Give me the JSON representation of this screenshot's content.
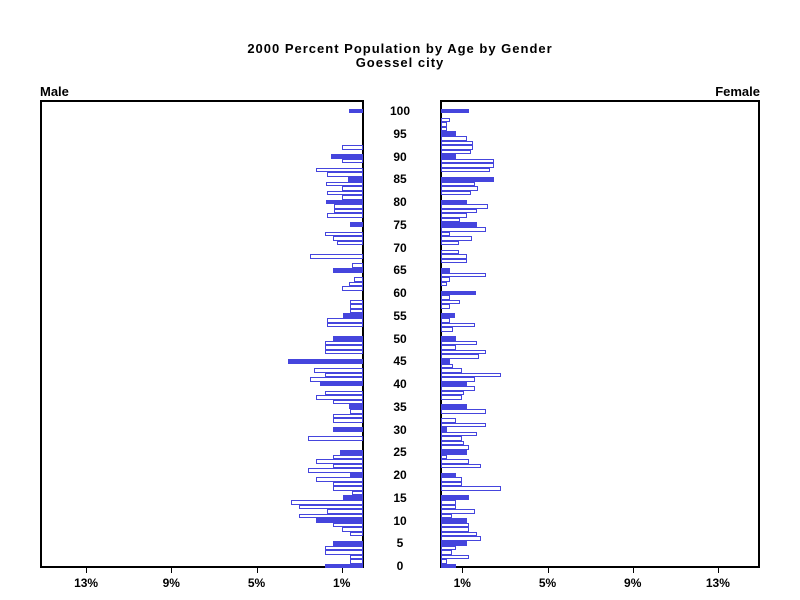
{
  "title": {
    "line1": "2000 Percent Population by Age by Gender",
    "line2": "Goessel city"
  },
  "panels": {
    "male_label": "Male",
    "female_label": "Female"
  },
  "axis": {
    "age_ticks": [
      0,
      5,
      10,
      15,
      20,
      25,
      30,
      35,
      40,
      45,
      50,
      55,
      60,
      65,
      70,
      75,
      80,
      85,
      90,
      95,
      100
    ],
    "pct_tick_values": [
      1,
      5,
      9,
      13
    ],
    "pct_tick_labels": [
      "1%",
      "5%",
      "9%",
      "13%"
    ]
  },
  "colors": {
    "bar_blue": "#4545dd",
    "bar_white_fill": "#ffffff",
    "frame_black": "#000000",
    "background": "#ffffff"
  },
  "chart_data": {
    "type": "bar",
    "subtype": "population-pyramid",
    "title": "2000 Percent Population by Age by Gender",
    "subtitle": "Goessel city",
    "legend": "none",
    "left_panel_label": "Male",
    "right_panel_label": "Female",
    "units": "percent of population",
    "x_axis": {
      "tick_values": [
        1,
        5,
        9,
        13
      ],
      "tick_labels": [
        "1%",
        "5%",
        "9%",
        "13%"
      ],
      "range_pct": [
        0,
        15
      ],
      "mirrored": true
    },
    "y_axis": {
      "age_range": [
        0,
        100
      ],
      "age_label_step": 5
    },
    "style_note": "one horizontal bar per single year of age 0-100; ages that are multiples of 5 are solid blue, other ages are white with blue outline",
    "values_indexed_by_age_0_to_100": true,
    "series": [
      {
        "name": "Male",
        "values": [
          1.8,
          0.6,
          0.6,
          1.8,
          1.8,
          1.4,
          0,
          0.6,
          1.0,
          1.4,
          2.2,
          3.0,
          1.7,
          3.0,
          3.4,
          0.95,
          0.5,
          1.4,
          1.4,
          2.2,
          0.6,
          2.6,
          1.4,
          2.2,
          1.4,
          1.1,
          0,
          0,
          2.6,
          0,
          1.4,
          0,
          1.4,
          1.4,
          0.6,
          0.65,
          1.4,
          2.2,
          1.8,
          0,
          2.0,
          2.5,
          1.8,
          2.3,
          0,
          3.5,
          0,
          1.8,
          1.8,
          1.8,
          1.4,
          0,
          0,
          1.7,
          1.7,
          0.95,
          0.6,
          0.6,
          0.6,
          0,
          0,
          1.0,
          0.65,
          0.4,
          0,
          1.4,
          0.5,
          0,
          2.5,
          0,
          0,
          1.2,
          1.4,
          1.8,
          0,
          0.6,
          0,
          1.7,
          1.35,
          1.35,
          1.75,
          1.0,
          1.7,
          1.0,
          1.75,
          0.7,
          1.7,
          2.2,
          0,
          1.0,
          1.5,
          0,
          1.0,
          0,
          0,
          0,
          0,
          0,
          0,
          0,
          0.65
        ]
      },
      {
        "name": "Female",
        "values": [
          0.7,
          0.3,
          1.3,
          0.5,
          0.7,
          1.2,
          1.9,
          1.7,
          1.3,
          1.3,
          1.2,
          0.5,
          1.6,
          0.7,
          0.7,
          1.3,
          0,
          2.8,
          1.0,
          1.0,
          0.7,
          0,
          1.9,
          1.3,
          0.3,
          1.2,
          1.3,
          1.1,
          1.0,
          1.7,
          0.3,
          2.1,
          0.7,
          0,
          2.1,
          1.2,
          0,
          1.0,
          1.1,
          1.6,
          1.2,
          1.6,
          2.8,
          1.0,
          0.55,
          0.4,
          1.8,
          2.1,
          0.7,
          1.7,
          0.7,
          0,
          0.55,
          1.6,
          0.4,
          0.65,
          0,
          0.4,
          0.9,
          0.4,
          1.65,
          0,
          0.3,
          0.4,
          2.1,
          0.4,
          0,
          1.2,
          1.2,
          0.85,
          0,
          0.85,
          1.45,
          0.4,
          2.1,
          1.7,
          0.9,
          1.2,
          1.7,
          2.2,
          1.2,
          0,
          1.4,
          1.75,
          1.6,
          2.5,
          0,
          2.3,
          2.5,
          2.5,
          0.7,
          1.4,
          1.5,
          1.5,
          1.2,
          0.7,
          0.3,
          0.3,
          0.4,
          0,
          1.3
        ]
      }
    ]
  }
}
